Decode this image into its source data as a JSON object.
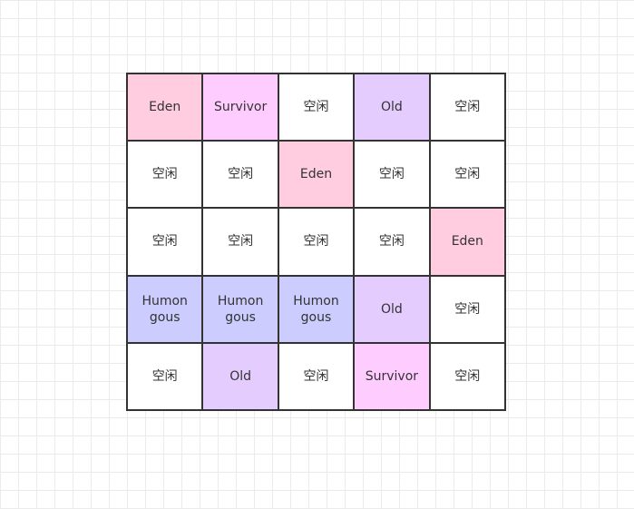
{
  "colors": {
    "Eden": "#ffcce0",
    "Survivor": "#ffccff",
    "Old": "#e5ccff",
    "Humongous": "#ccccff",
    "Free": "#ffffff",
    "border": "#333333"
  },
  "regions": [
    [
      {
        "type": "Eden",
        "label": "Eden"
      },
      {
        "type": "Survivor",
        "label": "Survivor"
      },
      {
        "type": "Free",
        "label": "空闲"
      },
      {
        "type": "Old",
        "label": "Old"
      },
      {
        "type": "Free",
        "label": "空闲"
      }
    ],
    [
      {
        "type": "Free",
        "label": "空闲"
      },
      {
        "type": "Free",
        "label": "空闲"
      },
      {
        "type": "Eden",
        "label": "Eden"
      },
      {
        "type": "Free",
        "label": "空闲"
      },
      {
        "type": "Free",
        "label": "空闲"
      }
    ],
    [
      {
        "type": "Free",
        "label": "空闲"
      },
      {
        "type": "Free",
        "label": "空闲"
      },
      {
        "type": "Free",
        "label": "空闲"
      },
      {
        "type": "Free",
        "label": "空闲"
      },
      {
        "type": "Eden",
        "label": "Eden"
      }
    ],
    [
      {
        "type": "Humongous",
        "label": "Humon gous"
      },
      {
        "type": "Humongous",
        "label": "Humon gous"
      },
      {
        "type": "Humongous",
        "label": "Humon gous"
      },
      {
        "type": "Old",
        "label": "Old"
      },
      {
        "type": "Free",
        "label": "空闲"
      }
    ],
    [
      {
        "type": "Free",
        "label": "空闲"
      },
      {
        "type": "Old",
        "label": "Old"
      },
      {
        "type": "Free",
        "label": "空闲"
      },
      {
        "type": "Survivor",
        "label": "Survivor"
      },
      {
        "type": "Free",
        "label": "空闲"
      }
    ]
  ]
}
